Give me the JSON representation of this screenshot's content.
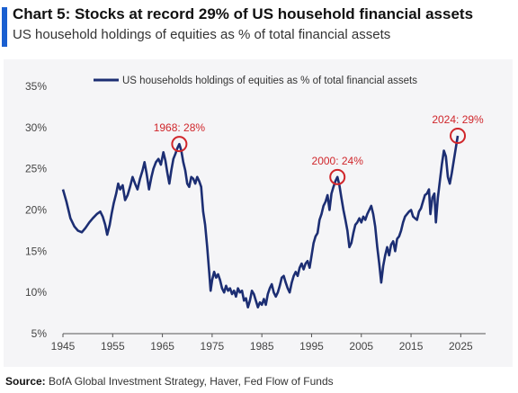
{
  "header": {
    "title": "Chart 5: Stocks at record 29% of US household financial assets",
    "subtitle": "US household holdings of equities as % of total financial assets"
  },
  "source": {
    "label": "Source:",
    "text": "BofA Global Investment Strategy, Haver, Fed Flow of Funds"
  },
  "colors": {
    "line": "#1c2e73",
    "annotation": "#d0262b",
    "accent": "#1a5fd0"
  },
  "chart_data": {
    "type": "line",
    "legend": "US households holdings of equities as % of total financial assets",
    "legend_position": "top-center",
    "grid": false,
    "xlim": [
      1945,
      2030
    ],
    "ylim": [
      5,
      35
    ],
    "x_ticks": [
      1945,
      1955,
      1965,
      1975,
      1985,
      1995,
      2005,
      2015,
      2025
    ],
    "y_ticks": [
      5,
      10,
      15,
      20,
      25,
      30,
      35
    ],
    "y_tick_labels": [
      "5%",
      "10%",
      "15%",
      "20%",
      "25%",
      "30%",
      "35%"
    ],
    "series": [
      {
        "name": "US households holdings of equities as % of total financial assets",
        "points": [
          [
            1945.0,
            22.5
          ],
          [
            1945.7,
            21.0
          ],
          [
            1946.5,
            19.0
          ],
          [
            1947.3,
            18.0
          ],
          [
            1948.0,
            17.5
          ],
          [
            1948.8,
            17.3
          ],
          [
            1949.5,
            17.8
          ],
          [
            1950.3,
            18.5
          ],
          [
            1951.0,
            19.0
          ],
          [
            1951.8,
            19.5
          ],
          [
            1952.5,
            19.8
          ],
          [
            1953.0,
            19.2
          ],
          [
            1953.5,
            18.2
          ],
          [
            1953.9,
            17.0
          ],
          [
            1954.4,
            18.2
          ],
          [
            1954.8,
            19.6
          ],
          [
            1955.2,
            20.8
          ],
          [
            1955.7,
            22.0
          ],
          [
            1956.1,
            23.2
          ],
          [
            1956.5,
            22.5
          ],
          [
            1957.0,
            23.0
          ],
          [
            1957.5,
            21.2
          ],
          [
            1958.0,
            21.8
          ],
          [
            1958.5,
            22.8
          ],
          [
            1959.0,
            24.0
          ],
          [
            1959.5,
            23.2
          ],
          [
            1960.0,
            22.5
          ],
          [
            1960.5,
            23.8
          ],
          [
            1961.0,
            24.8
          ],
          [
            1961.4,
            25.8
          ],
          [
            1961.8,
            24.5
          ],
          [
            1962.3,
            22.5
          ],
          [
            1962.8,
            24.0
          ],
          [
            1963.2,
            25.0
          ],
          [
            1963.7,
            25.8
          ],
          [
            1964.2,
            26.2
          ],
          [
            1964.7,
            25.5
          ],
          [
            1965.2,
            27.0
          ],
          [
            1965.6,
            26.0
          ],
          [
            1966.0,
            24.5
          ],
          [
            1966.4,
            23.2
          ],
          [
            1966.8,
            24.8
          ],
          [
            1967.2,
            26.2
          ],
          [
            1967.6,
            26.8
          ],
          [
            1968.0,
            27.5
          ],
          [
            1968.4,
            28.0
          ],
          [
            1968.8,
            27.2
          ],
          [
            1969.2,
            25.8
          ],
          [
            1969.6,
            24.8
          ],
          [
            1970.0,
            23.2
          ],
          [
            1970.4,
            22.8
          ],
          [
            1970.8,
            24.0
          ],
          [
            1971.2,
            23.8
          ],
          [
            1971.6,
            23.2
          ],
          [
            1972.0,
            24.0
          ],
          [
            1972.4,
            23.5
          ],
          [
            1972.8,
            22.8
          ],
          [
            1973.2,
            19.8
          ],
          [
            1973.6,
            18.2
          ],
          [
            1974.0,
            15.5
          ],
          [
            1974.4,
            12.5
          ],
          [
            1974.7,
            10.2
          ],
          [
            1975.0,
            11.5
          ],
          [
            1975.4,
            12.5
          ],
          [
            1975.8,
            11.8
          ],
          [
            1976.2,
            12.2
          ],
          [
            1976.6,
            11.5
          ],
          [
            1977.0,
            10.5
          ],
          [
            1977.4,
            10.0
          ],
          [
            1977.8,
            10.8
          ],
          [
            1978.2,
            10.2
          ],
          [
            1978.6,
            10.5
          ],
          [
            1979.0,
            9.8
          ],
          [
            1979.4,
            10.2
          ],
          [
            1979.8,
            9.5
          ],
          [
            1980.2,
            10.5
          ],
          [
            1980.6,
            10.0
          ],
          [
            1981.0,
            10.2
          ],
          [
            1981.4,
            9.0
          ],
          [
            1981.8,
            9.3
          ],
          [
            1982.2,
            8.2
          ],
          [
            1982.6,
            9.0
          ],
          [
            1983.0,
            10.2
          ],
          [
            1983.4,
            9.8
          ],
          [
            1983.8,
            9.0
          ],
          [
            1984.2,
            8.2
          ],
          [
            1984.6,
            8.8
          ],
          [
            1985.0,
            8.5
          ],
          [
            1985.4,
            9.2
          ],
          [
            1985.8,
            8.5
          ],
          [
            1986.2,
            9.8
          ],
          [
            1986.6,
            10.5
          ],
          [
            1987.0,
            11.0
          ],
          [
            1987.4,
            10.0
          ],
          [
            1987.8,
            9.5
          ],
          [
            1988.2,
            10.0
          ],
          [
            1988.6,
            10.8
          ],
          [
            1989.0,
            11.8
          ],
          [
            1989.4,
            12.0
          ],
          [
            1989.8,
            11.2
          ],
          [
            1990.2,
            10.5
          ],
          [
            1990.6,
            10.0
          ],
          [
            1991.0,
            11.2
          ],
          [
            1991.4,
            12.0
          ],
          [
            1991.8,
            12.5
          ],
          [
            1992.2,
            12.0
          ],
          [
            1992.6,
            13.0
          ],
          [
            1993.0,
            13.5
          ],
          [
            1993.4,
            12.8
          ],
          [
            1993.8,
            13.5
          ],
          [
            1994.2,
            13.8
          ],
          [
            1994.6,
            13.0
          ],
          [
            1995.0,
            14.5
          ],
          [
            1995.4,
            16.0
          ],
          [
            1995.8,
            16.8
          ],
          [
            1996.2,
            17.2
          ],
          [
            1996.6,
            18.8
          ],
          [
            1997.0,
            19.5
          ],
          [
            1997.4,
            20.5
          ],
          [
            1997.8,
            21.0
          ],
          [
            1998.2,
            21.8
          ],
          [
            1998.6,
            20.0
          ],
          [
            1999.0,
            22.0
          ],
          [
            1999.4,
            22.8
          ],
          [
            1999.8,
            23.5
          ],
          [
            2000.2,
            24.0
          ],
          [
            2000.6,
            23.0
          ],
          [
            2001.0,
            21.5
          ],
          [
            2001.4,
            20.0
          ],
          [
            2001.8,
            18.8
          ],
          [
            2002.2,
            17.5
          ],
          [
            2002.6,
            15.5
          ],
          [
            2003.0,
            16.0
          ],
          [
            2003.4,
            17.2
          ],
          [
            2003.8,
            18.2
          ],
          [
            2004.2,
            18.5
          ],
          [
            2004.6,
            19.0
          ],
          [
            2005.0,
            18.5
          ],
          [
            2005.4,
            19.2
          ],
          [
            2005.8,
            18.8
          ],
          [
            2006.2,
            19.5
          ],
          [
            2006.6,
            20.0
          ],
          [
            2007.0,
            20.5
          ],
          [
            2007.4,
            19.5
          ],
          [
            2007.8,
            18.0
          ],
          [
            2008.2,
            15.5
          ],
          [
            2008.6,
            13.5
          ],
          [
            2009.0,
            11.2
          ],
          [
            2009.4,
            13.2
          ],
          [
            2009.8,
            14.5
          ],
          [
            2010.2,
            15.5
          ],
          [
            2010.6,
            14.5
          ],
          [
            2011.0,
            15.8
          ],
          [
            2011.4,
            16.2
          ],
          [
            2011.8,
            15.0
          ],
          [
            2012.2,
            16.5
          ],
          [
            2012.6,
            16.8
          ],
          [
            2013.0,
            17.5
          ],
          [
            2013.4,
            18.5
          ],
          [
            2013.8,
            19.2
          ],
          [
            2014.2,
            19.5
          ],
          [
            2014.6,
            19.8
          ],
          [
            2015.0,
            20.0
          ],
          [
            2015.4,
            19.2
          ],
          [
            2015.8,
            19.0
          ],
          [
            2016.2,
            18.8
          ],
          [
            2016.6,
            19.8
          ],
          [
            2017.0,
            20.2
          ],
          [
            2017.4,
            21.0
          ],
          [
            2017.8,
            21.8
          ],
          [
            2018.2,
            22.0
          ],
          [
            2018.6,
            22.5
          ],
          [
            2018.9,
            19.5
          ],
          [
            2019.3,
            21.5
          ],
          [
            2019.7,
            22.0
          ],
          [
            2020.0,
            18.5
          ],
          [
            2020.4,
            21.5
          ],
          [
            2020.8,
            23.5
          ],
          [
            2021.2,
            25.5
          ],
          [
            2021.6,
            27.2
          ],
          [
            2022.0,
            26.5
          ],
          [
            2022.4,
            24.0
          ],
          [
            2022.8,
            23.2
          ],
          [
            2023.2,
            24.5
          ],
          [
            2023.6,
            26.0
          ],
          [
            2024.0,
            27.5
          ],
          [
            2024.4,
            29.0
          ]
        ]
      }
    ],
    "annotations": [
      {
        "x": 1968.4,
        "y": 28.0,
        "label": "1968: 28%"
      },
      {
        "x": 2000.2,
        "y": 24.0,
        "label": "2000: 24%"
      },
      {
        "x": 2024.4,
        "y": 29.0,
        "label": "2024: 29%"
      }
    ]
  }
}
